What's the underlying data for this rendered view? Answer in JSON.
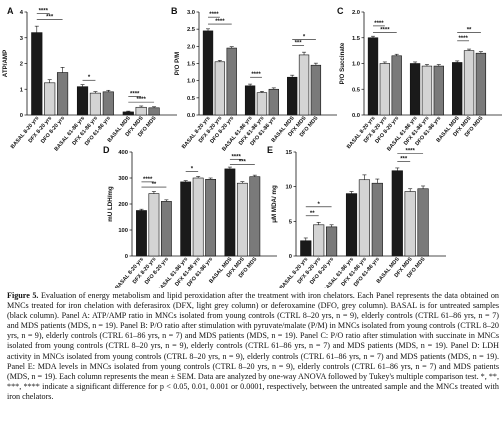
{
  "caption": {
    "label": "Figure 5.",
    "text": "Evaluation of energy metabolism and lipid peroxidation after the treatment with iron chelators. Each Panel represents the data obtained on MNCs treated for iron chelation with deferasirox (DFX, light grey column) or deferoxamine (DFO, grey column). BASAL is for untreated samples (black column). Panel A: ATP/AMP ratio in MNCs isolated from young controls (CTRL 8–20 yrs, n = 9), elderly controls (CTRL 61–86 yrs, n = 7) and MDS patients (MDS, n = 19). Panel B: P/O ratio after stimulation with pyruvate/malate (P/M) in MNCs isolated from young controls (CTRL 8–20 yrs, n = 9), elderly controls (CTRL 61–86 yrs, n = 7) and MDS patients (MDS, n = 19). Panel C: P/O ratio after stimulation with succinate in MNCs isolated from young controls (CTRL 8–20 yrs, n = 9), elderly controls (CTRL 61–86 yrs, n = 7) and MDS patients (MDS, n = 19). Panel D: LDH activity in MNCs isolated from young controls (CTRL 8–20 yrs, n = 9), elderly controls (CTRL 61–86 yrs, n = 7) and MDS patients (MDS, n = 19). Panel E: MDA levels in MNCs isolated from young controls (CTRL 8–20 yrs, n = 9), elderly controls (CTRL 61–86 yrs, n = 7) and MDS patients (MDS, n = 19). Each column represents the mean ± SEM. Data are analyzed by one-way ANOVA followed by Tukey's multiple comparison test. *, **, ***, **** indicate a significant difference for p < 0.05, 0.01, 0.001 or 0.0001, respectively, between the untreated sample and the MNCs treated with iron chelators."
  },
  "colors": {
    "basal": "#1a1a1a",
    "dfx": "#d4d4d4",
    "dfo": "#7a7a7a"
  },
  "chart_data": [
    {
      "type": "bar",
      "panel": "A",
      "ylabel": "ATP/AMP",
      "ylim": [
        0,
        4
      ],
      "yticks": [
        "0",
        "1",
        "2",
        "3",
        "4"
      ],
      "categories": [
        "BASAL 8-20 yrs",
        "DFX 8-20 yrs",
        "DFO 8-20 yrs",
        "BASAL 61-86 yrs",
        "DFX 61-86 yrs",
        "DFO 61-86 yrs",
        "BASAL MDS",
        "DFX MDS",
        "DFO MDS"
      ],
      "values": [
        3.2,
        1.25,
        1.65,
        1.1,
        0.85,
        0.9,
        0.12,
        0.3,
        0.28
      ],
      "errors": [
        0.25,
        0.12,
        0.2,
        0.08,
        0.06,
        0.06,
        0.03,
        0.05,
        0.04
      ],
      "significance": [
        {
          "from": 0,
          "to": 1,
          "label": "****",
          "y": 3.95
        },
        {
          "from": 0,
          "to": 2,
          "label": "***",
          "y": 3.7
        },
        {
          "from": 3,
          "to": 4,
          "label": "*",
          "y": 1.35
        },
        {
          "from": 6,
          "to": 7,
          "label": "****",
          "y": 0.72
        },
        {
          "from": 6,
          "to": 8,
          "label": "****",
          "y": 0.5
        }
      ]
    },
    {
      "type": "bar",
      "panel": "B",
      "ylabel": "P/O P/M",
      "ylim": [
        0,
        3
      ],
      "yticks": [
        "0.0",
        "0.5",
        "1.0",
        "1.5",
        "2.0",
        "2.5",
        "3.0"
      ],
      "categories": [
        "BASAL 8-20 yrs",
        "DFX 8-20 yrs",
        "DFO 8-20 yrs",
        "BASAL 61-86 yrs",
        "DFX 61-86 yrs",
        "DFO 61-86 yrs",
        "BASAL MDS",
        "DFX MDS",
        "DFO MDS"
      ],
      "values": [
        2.45,
        1.55,
        1.95,
        0.85,
        0.65,
        0.75,
        1.1,
        1.75,
        1.45
      ],
      "errors": [
        0.06,
        0.04,
        0.04,
        0.05,
        0.04,
        0.04,
        0.06,
        0.08,
        0.06
      ],
      "significance": [
        {
          "from": 0,
          "to": 1,
          "label": "****",
          "y": 2.85
        },
        {
          "from": 0,
          "to": 2,
          "label": "****",
          "y": 2.65
        },
        {
          "from": 3,
          "to": 4,
          "label": "****",
          "y": 1.1
        },
        {
          "from": 6,
          "to": 7,
          "label": "***",
          "y": 2.02
        },
        {
          "from": 6,
          "to": 8,
          "label": "*",
          "y": 2.2
        }
      ]
    },
    {
      "type": "bar",
      "panel": "C",
      "ylabel": "P/O Succinate",
      "ylim": [
        0,
        2
      ],
      "yticks": [
        "0.0",
        "0.5",
        "1.0",
        "1.5",
        "2.0"
      ],
      "categories": [
        "BASAL 8-20 yrs",
        "DFX 8-20 yrs",
        "DFO 8-20 yrs",
        "BASAL 61-86 yrs",
        "DFX 61-86 yrs",
        "DFO 61-86 yrs",
        "BASAL MDS",
        "DFX MDS",
        "DFO MDS"
      ],
      "values": [
        1.5,
        1.0,
        1.15,
        1.0,
        0.95,
        0.95,
        1.02,
        1.25,
        1.2
      ],
      "errors": [
        0.03,
        0.03,
        0.03,
        0.03,
        0.03,
        0.03,
        0.03,
        0.03,
        0.03
      ],
      "significance": [
        {
          "from": 0,
          "to": 1,
          "label": "****",
          "y": 1.73
        },
        {
          "from": 0,
          "to": 2,
          "label": "****",
          "y": 1.6
        },
        {
          "from": 6,
          "to": 7,
          "label": "****",
          "y": 1.44
        },
        {
          "from": 6,
          "to": 8,
          "label": "**",
          "y": 1.6
        }
      ]
    },
    {
      "type": "bar",
      "panel": "D",
      "ylabel": "mU LDH/mg",
      "ylim": [
        0,
        400
      ],
      "yticks": [
        "0",
        "100",
        "200",
        "300",
        "400"
      ],
      "categories": [
        "BASAL 8-20 yrs",
        "DFX 8-20 yrs",
        "DFO 8-20 yrs",
        "BASAL 61-86 yrs",
        "DFX 61-86 yrs",
        "DFO 61-86 yrs",
        "BASAL MDS",
        "DFX MDS",
        "DFO MDS"
      ],
      "values": [
        175,
        240,
        210,
        285,
        300,
        295,
        335,
        280,
        305
      ],
      "errors": [
        5,
        8,
        6,
        5,
        6,
        5,
        7,
        6,
        6
      ],
      "significance": [
        {
          "from": 0,
          "to": 1,
          "label": "****",
          "y": 285
        },
        {
          "from": 0,
          "to": 2,
          "label": "**",
          "y": 265
        },
        {
          "from": 3,
          "to": 4,
          "label": "*",
          "y": 325
        },
        {
          "from": 6,
          "to": 7,
          "label": "****",
          "y": 372
        },
        {
          "from": 6,
          "to": 8,
          "label": "***",
          "y": 352
        }
      ]
    },
    {
      "type": "bar",
      "panel": "E",
      "ylabel": "μM MDA/ mg",
      "ylim": [
        0,
        15
      ],
      "yticks": [
        "0",
        "5",
        "10",
        "15"
      ],
      "categories": [
        "BASAL 8-20 yrs",
        "DFX 8-20 yrs",
        "DFO 8-20 yrs",
        "BASAL 61-86 yrs",
        "DFX 61-86 yrs",
        "DFO 61-86 yrs",
        "BASAL MDS",
        "DFX MDS",
        "DFO MDS"
      ],
      "values": [
        2.2,
        4.5,
        4.2,
        9.0,
        11.0,
        10.5,
        12.3,
        9.3,
        9.7
      ],
      "errors": [
        0.4,
        0.35,
        0.3,
        0.3,
        0.7,
        0.6,
        0.4,
        0.4,
        0.4
      ],
      "significance": [
        {
          "from": 0,
          "to": 1,
          "label": "**",
          "y": 5.8
        },
        {
          "from": 0,
          "to": 2,
          "label": "*",
          "y": 7.1
        },
        {
          "from": 6,
          "to": 7,
          "label": "***",
          "y": 13.6
        },
        {
          "from": 6,
          "to": 8,
          "label": "****",
          "y": 14.8
        }
      ]
    }
  ]
}
